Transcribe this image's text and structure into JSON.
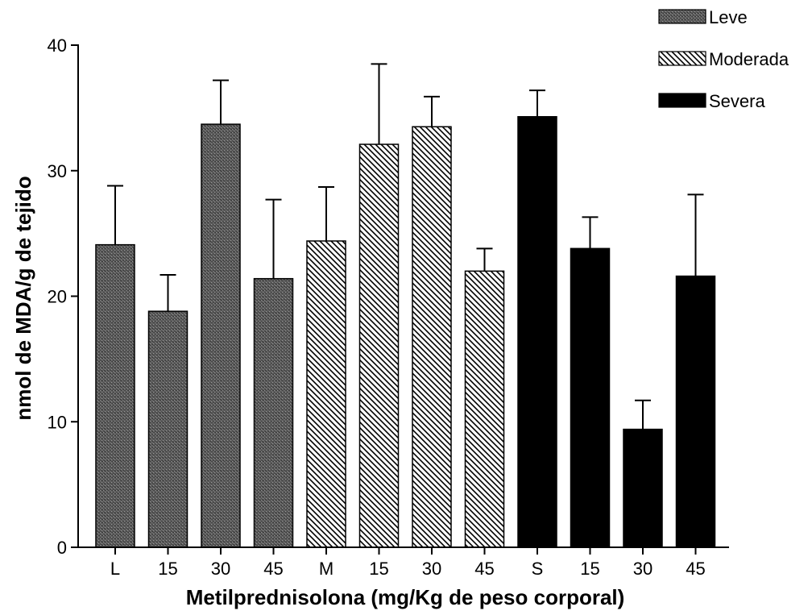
{
  "chart_data": {
    "type": "bar",
    "title": "",
    "xlabel": "Metilprednisolona (mg/Kg de peso corporal)",
    "ylabel": "nmol de MDA/g de tejido",
    "ylim": [
      0,
      40
    ],
    "yticks": [
      0,
      10,
      20,
      30,
      40
    ],
    "categories": [
      "L",
      "15",
      "30",
      "45",
      "M",
      "15",
      "30",
      "45",
      "S",
      "15",
      "30",
      "45"
    ],
    "series": [
      {
        "name": "Leve",
        "pattern": "stipple",
        "color": "#555555",
        "values": [
          24.1,
          18.8,
          33.7,
          21.4,
          null,
          null,
          null,
          null,
          null,
          null,
          null,
          null
        ],
        "errors": [
          4.7,
          2.9,
          3.5,
          6.3,
          null,
          null,
          null,
          null,
          null,
          null,
          null,
          null
        ]
      },
      {
        "name": "Moderada",
        "pattern": "hatch",
        "color": "#000000",
        "values": [
          null,
          null,
          null,
          null,
          24.4,
          32.1,
          33.5,
          22.0,
          null,
          null,
          null,
          null
        ],
        "errors": [
          null,
          null,
          null,
          null,
          4.3,
          6.4,
          2.4,
          1.8,
          null,
          null,
          null,
          null
        ]
      },
      {
        "name": "Severa",
        "pattern": "solid",
        "color": "#000000",
        "values": [
          null,
          null,
          null,
          null,
          null,
          null,
          null,
          null,
          34.3,
          23.8,
          9.4,
          21.6
        ],
        "errors": [
          null,
          null,
          null,
          null,
          null,
          null,
          null,
          null,
          2.1,
          2.5,
          2.3,
          6.5
        ]
      }
    ],
    "legend": {
      "placement": "top-right"
    },
    "grid": false
  }
}
